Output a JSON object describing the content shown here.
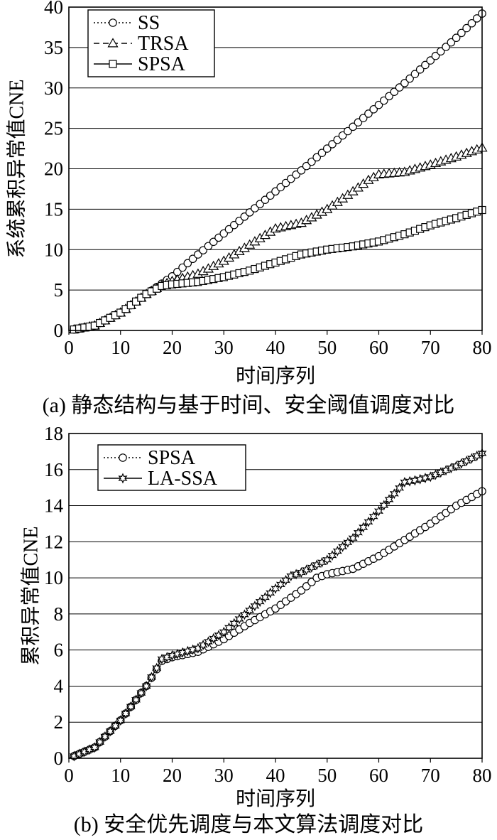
{
  "chart_data": [
    {
      "type": "line",
      "caption": "(a) 静态结构与基于时间、安全阈值调度对比",
      "xlabel": "时间序列",
      "ylabel": "系统累积异常值CNE",
      "xlim": [
        0,
        80
      ],
      "ylim": [
        0,
        40
      ],
      "xticks": [
        0,
        10,
        20,
        30,
        40,
        50,
        60,
        70,
        80
      ],
      "yticks": [
        0,
        5,
        10,
        15,
        20,
        25,
        30,
        35,
        40
      ],
      "grid": "horizontal",
      "legend": "top-left",
      "series": [
        {
          "name": "SS",
          "marker": "circle",
          "dash": "dotted",
          "x": [
            0,
            5,
            10,
            15,
            18,
            20,
            25,
            30,
            35,
            40,
            45,
            50,
            55,
            60,
            65,
            70,
            75,
            80
          ],
          "y": [
            0,
            0.6,
            2.2,
            4.5,
            5.8,
            6.7,
            9.4,
            12.0,
            14.6,
            17.2,
            19.8,
            22.5,
            25.2,
            27.9,
            30.6,
            33.4,
            36.2,
            39.2
          ]
        },
        {
          "name": "TRSA",
          "marker": "triangle",
          "dash": "dashed",
          "x": [
            0,
            5,
            10,
            15,
            18,
            20,
            25,
            30,
            35,
            40,
            45,
            50,
            55,
            58,
            60,
            65,
            70,
            75,
            80
          ],
          "y": [
            0,
            0.6,
            2.2,
            4.5,
            5.6,
            6.1,
            7.0,
            8.6,
            10.6,
            12.6,
            13.3,
            15.0,
            17.2,
            18.6,
            19.3,
            19.6,
            20.5,
            21.5,
            22.6
          ]
        },
        {
          "name": "SPSA",
          "marker": "square",
          "dash": "solid",
          "x": [
            0,
            5,
            10,
            15,
            18,
            20,
            25,
            30,
            35,
            40,
            45,
            50,
            55,
            60,
            65,
            70,
            75,
            80
          ],
          "y": [
            0,
            0.6,
            2.2,
            4.5,
            5.5,
            5.7,
            6.0,
            6.6,
            7.4,
            8.4,
            9.4,
            10.0,
            10.4,
            11.0,
            11.9,
            13.0,
            13.9,
            14.9
          ]
        }
      ]
    },
    {
      "type": "line",
      "caption": "(b) 安全优先调度与本文算法调度对比",
      "xlabel": "时间序列",
      "ylabel": "累积异常值CNE",
      "xlim": [
        0,
        80
      ],
      "ylim": [
        0,
        18
      ],
      "xticks": [
        0,
        10,
        20,
        30,
        40,
        50,
        60,
        70,
        80
      ],
      "yticks": [
        0,
        2,
        4,
        6,
        8,
        10,
        12,
        14,
        16,
        18
      ],
      "grid": "horizontal",
      "legend": "top-left",
      "series": [
        {
          "name": "SPSA",
          "marker": "circle",
          "dash": "dotted",
          "x": [
            0,
            5,
            10,
            15,
            18,
            20,
            25,
            30,
            35,
            40,
            45,
            48,
            50,
            55,
            60,
            65,
            70,
            75,
            80
          ],
          "y": [
            0,
            0.6,
            2.1,
            4.0,
            5.4,
            5.6,
            5.9,
            6.6,
            7.5,
            8.3,
            9.3,
            10.0,
            10.2,
            10.5,
            11.2,
            12.1,
            13.0,
            14.0,
            14.8
          ]
        },
        {
          "name": "LA-SSA",
          "marker": "star",
          "dash": "solid",
          "x": [
            0,
            5,
            10,
            15,
            18,
            20,
            25,
            30,
            35,
            40,
            43,
            45,
            50,
            55,
            60,
            65,
            67,
            70,
            75,
            80
          ],
          "y": [
            0,
            0.6,
            2.1,
            4.0,
            5.5,
            5.7,
            6.1,
            7.0,
            8.2,
            9.4,
            10.1,
            10.3,
            11.0,
            12.2,
            13.7,
            15.3,
            15.4,
            15.6,
            16.2,
            16.9
          ]
        }
      ]
    }
  ]
}
